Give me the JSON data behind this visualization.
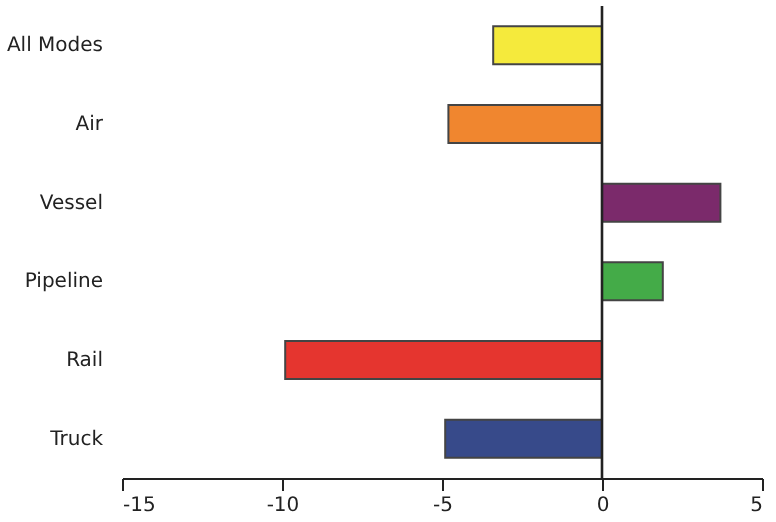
{
  "chart_data": {
    "type": "bar",
    "orientation": "horizontal",
    "categories": [
      "All Modes",
      "Air",
      "Vessel",
      "Pipeline",
      "Rail",
      "Truck"
    ],
    "values": [
      -3.4,
      -4.8,
      3.7,
      1.9,
      -9.9,
      -4.9
    ],
    "colors": [
      "#f5ea3c",
      "#f0862f",
      "#7b2a6b",
      "#44ab48",
      "#e5352f",
      "#374a8a"
    ],
    "xlim": [
      -15,
      5
    ],
    "xticks": [
      -15,
      -10,
      -5,
      0,
      5
    ],
    "grid": false,
    "ref_lines": [
      {
        "axis": "x",
        "value": 0,
        "color": "#222222"
      }
    ]
  }
}
